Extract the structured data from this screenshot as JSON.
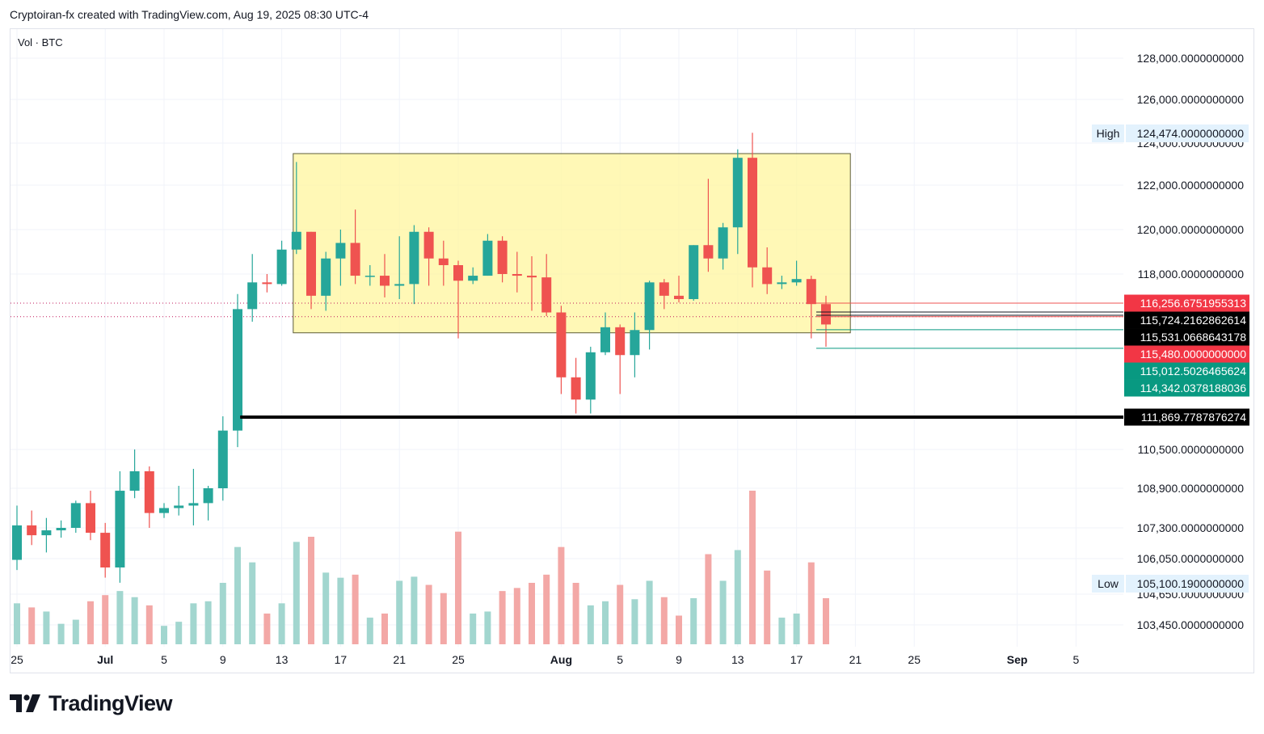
{
  "header": {
    "attribution": "Cryptoiran-fx created with TradingView.com, Aug 19, 2025 08:30 UTC-4",
    "volume_label": "Vol · BTC"
  },
  "footer": {
    "logo_text": "TradingView"
  },
  "colors": {
    "up": "#26a69a",
    "down": "#ef5350",
    "up_volume": "#a2d6cf",
    "down_volume": "#f3a8a6",
    "box_fill": "#fff59d",
    "support_line": "#000000",
    "grid": "#f0f3fa"
  },
  "chart_data": {
    "type": "candlestick",
    "symbol": "BTC",
    "y_ticks": [
      {
        "value": 128000,
        "label": "128,000.0000000000"
      },
      {
        "value": 126000,
        "label": "126,000.0000000000"
      },
      {
        "value": 124000,
        "label": "124,000.0000000000"
      },
      {
        "value": 122000,
        "label": "122,000.0000000000"
      },
      {
        "value": 120000,
        "label": "120,000.0000000000"
      },
      {
        "value": 118000,
        "label": "118,000.0000000000"
      },
      {
        "value": 110500,
        "label": "110,500.0000000000"
      },
      {
        "value": 108900,
        "label": "108,900.0000000000"
      },
      {
        "value": 107300,
        "label": "107,300.0000000000"
      },
      {
        "value": 106050,
        "label": "106,050.0000000000"
      },
      {
        "value": 104650,
        "label": "104,650.0000000000"
      },
      {
        "value": 103450,
        "label": "103,450.0000000000"
      }
    ],
    "x_ticks": [
      {
        "date": "2025-06-25",
        "label": "25",
        "bold": false
      },
      {
        "date": "2025-07-01",
        "label": "Jul",
        "bold": true
      },
      {
        "date": "2025-07-05",
        "label": "5",
        "bold": false
      },
      {
        "date": "2025-07-09",
        "label": "9",
        "bold": false
      },
      {
        "date": "2025-07-13",
        "label": "13",
        "bold": false
      },
      {
        "date": "2025-07-17",
        "label": "17",
        "bold": false
      },
      {
        "date": "2025-07-21",
        "label": "21",
        "bold": false
      },
      {
        "date": "2025-07-25",
        "label": "25",
        "bold": false
      },
      {
        "date": "2025-08-01",
        "label": "Aug",
        "bold": true
      },
      {
        "date": "2025-08-05",
        "label": "5",
        "bold": false
      },
      {
        "date": "2025-08-09",
        "label": "9",
        "bold": false
      },
      {
        "date": "2025-08-13",
        "label": "13",
        "bold": false
      },
      {
        "date": "2025-08-17",
        "label": "17",
        "bold": false
      },
      {
        "date": "2025-08-21",
        "label": "21",
        "bold": false
      },
      {
        "date": "2025-08-25",
        "label": "25",
        "bold": false
      },
      {
        "date": "2025-09-01",
        "label": "Sep",
        "bold": true
      },
      {
        "date": "2025-09-05",
        "label": "5",
        "bold": false
      }
    ],
    "high": {
      "label": "High",
      "value_label": "124,474.0000000000"
    },
    "low": {
      "label": "Low",
      "value_label": "105,100.1900000000"
    },
    "price_tags": [
      {
        "value": 116256.6751955313,
        "label": "116,256.6751955313",
        "style": "red"
      },
      {
        "value": 115724.2162862614,
        "label": "115,724.2162862614",
        "style": "black"
      },
      {
        "value": 115531.0668643178,
        "label": "115,531.0668643178",
        "style": "black"
      },
      {
        "value": 115480.0,
        "label": "115,480.0000000000",
        "style": "red"
      },
      {
        "value": 115012.5026465624,
        "label": "115,012.5026465624",
        "style": "green"
      },
      {
        "value": 114342.0378188036,
        "label": "114,342.0378188036",
        "style": "green"
      },
      {
        "value": 111869.7787876274,
        "label": "111,869.7787876274",
        "style": "black"
      }
    ],
    "range_box": {
      "from": "2025-07-14",
      "to": "2025-08-20",
      "top": 123500,
      "bottom": 114900
    },
    "support_line": {
      "from": "2025-07-11",
      "value": 111869.7787876274
    },
    "dotted_lines": [
      {
        "value": 116256.6751955313,
        "style": "red-dotted"
      },
      {
        "value": 115480.0,
        "style": "red-dotted"
      }
    ],
    "ohlc_daily": [
      {
        "date": "2025-06-25",
        "open": 106000,
        "high": 108200,
        "low": 105600,
        "close": 107400,
        "volume": 40
      },
      {
        "date": "2025-06-26",
        "open": 107400,
        "high": 108000,
        "low": 106600,
        "close": 107000,
        "volume": 36
      },
      {
        "date": "2025-06-27",
        "open": 107000,
        "high": 107700,
        "low": 106300,
        "close": 107200,
        "volume": 32
      },
      {
        "date": "2025-06-28",
        "open": 107200,
        "high": 107600,
        "low": 106900,
        "close": 107300,
        "volume": 20
      },
      {
        "date": "2025-06-29",
        "open": 107300,
        "high": 108400,
        "low": 107100,
        "close": 108300,
        "volume": 24
      },
      {
        "date": "2025-06-30",
        "open": 108300,
        "high": 108800,
        "low": 106800,
        "close": 107100,
        "volume": 42
      },
      {
        "date": "2025-07-01",
        "open": 107100,
        "high": 107500,
        "low": 105300,
        "close": 105700,
        "volume": 48
      },
      {
        "date": "2025-07-02",
        "open": 105700,
        "high": 109600,
        "low": 105100,
        "close": 108800,
        "volume": 52
      },
      {
        "date": "2025-07-03",
        "open": 108800,
        "high": 110500,
        "low": 108500,
        "close": 109600,
        "volume": 46
      },
      {
        "date": "2025-07-04",
        "open": 109600,
        "high": 109800,
        "low": 107300,
        "close": 107900,
        "volume": 38
      },
      {
        "date": "2025-07-05",
        "open": 107900,
        "high": 108300,
        "low": 107700,
        "close": 108100,
        "volume": 18
      },
      {
        "date": "2025-07-06",
        "open": 108100,
        "high": 109000,
        "low": 107800,
        "close": 108200,
        "volume": 22
      },
      {
        "date": "2025-07-07",
        "open": 108200,
        "high": 109700,
        "low": 107400,
        "close": 108300,
        "volume": 40
      },
      {
        "date": "2025-07-08",
        "open": 108300,
        "high": 109000,
        "low": 107600,
        "close": 108900,
        "volume": 42
      },
      {
        "date": "2025-07-09",
        "open": 108900,
        "high": 111900,
        "low": 108400,
        "close": 111300,
        "volume": 60
      },
      {
        "date": "2025-07-10",
        "open": 111300,
        "high": 116800,
        "low": 110600,
        "close": 115900,
        "volume": 95
      },
      {
        "date": "2025-07-11",
        "open": 115900,
        "high": 118900,
        "low": 115300,
        "close": 117500,
        "volume": 80
      },
      {
        "date": "2025-07-12",
        "open": 117500,
        "high": 118000,
        "low": 116900,
        "close": 117400,
        "volume": 30
      },
      {
        "date": "2025-07-13",
        "open": 117400,
        "high": 119500,
        "low": 117300,
        "close": 119100,
        "volume": 40
      },
      {
        "date": "2025-07-14",
        "open": 119100,
        "high": 123100,
        "low": 118900,
        "close": 119900,
        "volume": 100
      },
      {
        "date": "2025-07-15",
        "open": 119900,
        "high": 119900,
        "low": 115900,
        "close": 116700,
        "volume": 105
      },
      {
        "date": "2025-07-16",
        "open": 116700,
        "high": 119000,
        "low": 115800,
        "close": 118700,
        "volume": 70
      },
      {
        "date": "2025-07-17",
        "open": 118700,
        "high": 120000,
        "low": 117300,
        "close": 119400,
        "volume": 65
      },
      {
        "date": "2025-07-18",
        "open": 119400,
        "high": 120900,
        "low": 117400,
        "close": 117900,
        "volume": 68
      },
      {
        "date": "2025-07-19",
        "open": 117900,
        "high": 118400,
        "low": 117300,
        "close": 117900,
        "volume": 26
      },
      {
        "date": "2025-07-20",
        "open": 117900,
        "high": 118900,
        "low": 116600,
        "close": 117300,
        "volume": 30
      },
      {
        "date": "2025-07-21",
        "open": 117300,
        "high": 119700,
        "low": 116500,
        "close": 117400,
        "volume": 62
      },
      {
        "date": "2025-07-22",
        "open": 117400,
        "high": 120200,
        "low": 116200,
        "close": 119900,
        "volume": 66
      },
      {
        "date": "2025-07-23",
        "open": 119900,
        "high": 120100,
        "low": 117300,
        "close": 118700,
        "volume": 58
      },
      {
        "date": "2025-07-24",
        "open": 118700,
        "high": 119500,
        "low": 117300,
        "close": 118400,
        "volume": 50
      },
      {
        "date": "2025-07-25",
        "open": 118400,
        "high": 118600,
        "low": 114700,
        "close": 117600,
        "volume": 110
      },
      {
        "date": "2025-07-26",
        "open": 117600,
        "high": 118300,
        "low": 117400,
        "close": 117900,
        "volume": 30
      },
      {
        "date": "2025-07-27",
        "open": 117900,
        "high": 119800,
        "low": 117900,
        "close": 119500,
        "volume": 32
      },
      {
        "date": "2025-07-28",
        "open": 119500,
        "high": 119700,
        "low": 117500,
        "close": 118000,
        "volume": 52
      },
      {
        "date": "2025-07-29",
        "open": 118000,
        "high": 119000,
        "low": 116900,
        "close": 117900,
        "volume": 55
      },
      {
        "date": "2025-07-30",
        "open": 117900,
        "high": 118800,
        "low": 115800,
        "close": 117800,
        "volume": 60
      },
      {
        "date": "2025-07-31",
        "open": 117800,
        "high": 118900,
        "low": 115500,
        "close": 115700,
        "volume": 68
      },
      {
        "date": "2025-08-01",
        "open": 115700,
        "high": 116100,
        "low": 112700,
        "close": 113300,
        "volume": 95
      },
      {
        "date": "2025-08-02",
        "open": 113300,
        "high": 114000,
        "low": 112000,
        "close": 112500,
        "volume": 60
      },
      {
        "date": "2025-08-03",
        "open": 112500,
        "high": 114400,
        "low": 112000,
        "close": 114200,
        "volume": 38
      },
      {
        "date": "2025-08-04",
        "open": 114200,
        "high": 115700,
        "low": 114100,
        "close": 115100,
        "volume": 42
      },
      {
        "date": "2025-08-05",
        "open": 115100,
        "high": 115200,
        "low": 112700,
        "close": 114100,
        "volume": 58
      },
      {
        "date": "2025-08-06",
        "open": 114100,
        "high": 115700,
        "low": 113300,
        "close": 115000,
        "volume": 44
      },
      {
        "date": "2025-08-07",
        "open": 115000,
        "high": 117600,
        "low": 114300,
        "close": 117500,
        "volume": 62
      },
      {
        "date": "2025-08-08",
        "open": 117500,
        "high": 117700,
        "low": 115900,
        "close": 116700,
        "volume": 46
      },
      {
        "date": "2025-08-09",
        "open": 116700,
        "high": 117900,
        "low": 116300,
        "close": 116500,
        "volume": 28
      },
      {
        "date": "2025-08-10",
        "open": 116500,
        "high": 119300,
        "low": 116400,
        "close": 119300,
        "volume": 45
      },
      {
        "date": "2025-08-11",
        "open": 119300,
        "high": 122300,
        "low": 118100,
        "close": 118700,
        "volume": 88
      },
      {
        "date": "2025-08-12",
        "open": 118700,
        "high": 120300,
        "low": 118200,
        "close": 120100,
        "volume": 62
      },
      {
        "date": "2025-08-13",
        "open": 120100,
        "high": 123700,
        "low": 118900,
        "close": 123300,
        "volume": 92
      },
      {
        "date": "2025-08-14",
        "open": 123300,
        "high": 124474,
        "low": 117200,
        "close": 118300,
        "volume": 150
      },
      {
        "date": "2025-08-15",
        "open": 118300,
        "high": 119200,
        "low": 116800,
        "close": 117400,
        "volume": 72
      },
      {
        "date": "2025-08-16",
        "open": 117400,
        "high": 117900,
        "low": 117100,
        "close": 117500,
        "volume": 26
      },
      {
        "date": "2025-08-17",
        "open": 117500,
        "high": 118600,
        "low": 117300,
        "close": 117700,
        "volume": 30
      },
      {
        "date": "2025-08-18",
        "open": 117700,
        "high": 117900,
        "low": 114700,
        "close": 116200,
        "volume": 80
      },
      {
        "date": "2025-08-19",
        "open": 116200,
        "high": 116700,
        "low": 114400,
        "close": 115200,
        "volume": 45
      }
    ]
  }
}
